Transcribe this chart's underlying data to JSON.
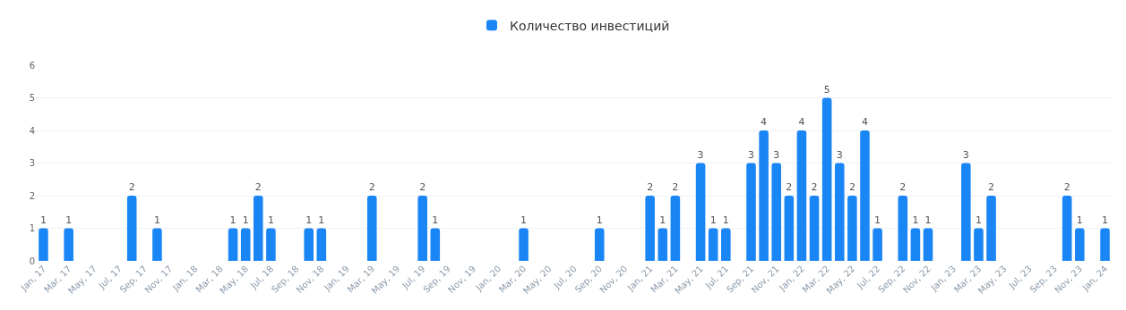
{
  "chart_data": {
    "type": "bar",
    "categories": [
      "Jan, 17",
      null,
      "Mar, 17",
      null,
      "May, 17",
      null,
      "Jul, 17",
      null,
      "Sep, 17",
      null,
      "Nov, 17",
      null,
      "Jan, 18",
      null,
      "Mar, 18",
      null,
      "May, 18",
      null,
      "Jul, 18",
      null,
      "Sep, 18",
      null,
      "Nov, 18",
      null,
      "Jan, 19",
      null,
      "Mar, 19",
      null,
      "May, 19",
      null,
      "Jul, 19",
      null,
      "Sep, 19",
      null,
      "Nov, 19",
      null,
      "Jan, 20",
      null,
      "Mar, 20",
      null,
      "May, 20",
      null,
      "Jul, 20",
      null,
      "Sep, 20",
      null,
      "Nov, 20",
      null,
      "Jan, 21",
      null,
      "Mar, 21",
      null,
      "May, 21",
      null,
      "Jul, 21",
      null,
      "Sep, 21",
      null,
      "Nov, 21",
      null,
      "Jan, 22",
      null,
      "Mar, 22",
      null,
      "May, 22",
      null,
      "Jul, 22",
      null,
      "Sep, 22",
      null,
      "Nov, 22",
      null,
      "Jan, 23",
      null,
      "Mar, 23",
      null,
      "May, 23",
      null,
      "Jul, 23",
      null,
      "Sep, 23",
      null,
      "Nov, 23",
      null,
      "Jan, 24"
    ],
    "series": [
      {
        "name": "Количество инвестиций",
        "color": "#1a86f5",
        "values": [
          1,
          0,
          1,
          0,
          0,
          0,
          0,
          2,
          0,
          1,
          0,
          0,
          0,
          0,
          0,
          1,
          1,
          2,
          1,
          0,
          0,
          1,
          1,
          0,
          0,
          0,
          2,
          0,
          0,
          0,
          2,
          1,
          0,
          0,
          0,
          0,
          0,
          0,
          1,
          0,
          0,
          0,
          0,
          0,
          1,
          0,
          0,
          0,
          2,
          1,
          2,
          0,
          3,
          1,
          1,
          0,
          3,
          4,
          3,
          2,
          4,
          2,
          5,
          3,
          2,
          4,
          1,
          0,
          2,
          1,
          1,
          0,
          0,
          3,
          1,
          2,
          0,
          0,
          0,
          0,
          0,
          2,
          1,
          0,
          1
        ],
        "value_labels": [
          "1",
          null,
          "1",
          null,
          null,
          null,
          null,
          "2",
          null,
          "1",
          null,
          null,
          null,
          null,
          null,
          "1",
          "1",
          "2",
          "1",
          null,
          null,
          "1",
          "1",
          null,
          null,
          null,
          "2",
          null,
          null,
          null,
          "2",
          "1",
          null,
          null,
          null,
          null,
          null,
          null,
          "1",
          null,
          null,
          null,
          null,
          null,
          "1",
          null,
          null,
          null,
          "2",
          "1",
          "2",
          null,
          "3",
          "1",
          "1",
          null,
          "3",
          "4",
          "3",
          "2",
          "4",
          "2",
          "5",
          "3",
          "2",
          "4",
          "1",
          null,
          "2",
          "1",
          "1",
          null,
          null,
          "3",
          "1",
          "2",
          null,
          null,
          null,
          null,
          null,
          "2",
          "1",
          null,
          "1"
        ]
      }
    ],
    "ylim": [
      0,
      6
    ],
    "yticks": [
      0,
      1,
      2,
      3,
      4,
      5,
      6
    ],
    "grid": "y",
    "legend": "top"
  }
}
